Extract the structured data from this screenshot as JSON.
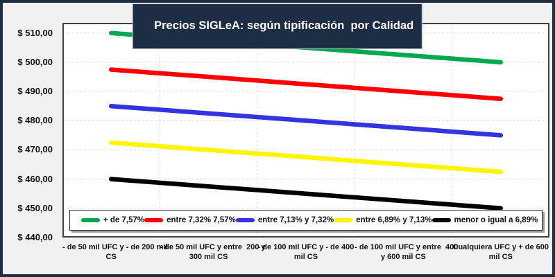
{
  "frame": {
    "background": "#F1F1F1",
    "border_color": "#1C2D44"
  },
  "title": {
    "bg": "#1C2D44",
    "color": "#FFFFFF"
  },
  "chart_data": {
    "type": "line",
    "title": "Precios SIGLeA: según tipificación  por Calidad",
    "categories": [
      "- de 50 mil UFC y - de 200 mil CS",
      "- de 50 mil UFC y entre 200 y 300 mil CS",
      "- de 100 mil UFC y - de 400 mil CS",
      "- de 100 mil UFC y entre 400 y 600 mil CS",
      "Cualquiera UFC y + de 600 mil CS"
    ],
    "x_tick_label_lines": [
      [
        "- de 50 mil UFC y - de 200 mil",
        "CS"
      ],
      [
        "- de 50 mil UFC y entre  200 y",
        "300 mil CS"
      ],
      [
        "- de 100 mil UFC y - de 400",
        "mil CS"
      ],
      [
        "- de 100 mil UFC y entre  400",
        "y 600 mil CS"
      ],
      [
        "Cualquiera UFC y + de 600",
        "mil CS"
      ]
    ],
    "series": [
      {
        "name": "+ de 7,57%",
        "color": "#00A850",
        "values": [
          510.0,
          507.5,
          505.0,
          502.5,
          500.0
        ]
      },
      {
        "name": "entre 7,32% 7,57%",
        "color": "#FE0000",
        "values": [
          497.5,
          495.0,
          492.5,
          490.0,
          487.5
        ]
      },
      {
        "name": "entre 7,13% y 7,32%",
        "color": "#3333DF",
        "values": [
          485.0,
          482.5,
          480.0,
          477.5,
          475.0
        ]
      },
      {
        "name": "entre 6,89% y 7,13%",
        "color": "#FFF500",
        "values": [
          472.5,
          470.0,
          467.5,
          465.0,
          462.5
        ]
      },
      {
        "name": "menor o igual a 6,89%",
        "color": "#000000",
        "values": [
          460.0,
          457.5,
          455.0,
          452.5,
          450.0
        ]
      }
    ],
    "y_ticks": [
      440,
      450,
      460,
      470,
      480,
      490,
      500,
      510
    ],
    "y_tick_labels": [
      "$ 440,00",
      "$ 450,00",
      "$ 460,00",
      "$ 470,00",
      "$ 480,00",
      "$ 490,00",
      "$ 500,00",
      "$ 510,00"
    ],
    "ylim": [
      440,
      513.5
    ],
    "grid": {
      "horizontal": true,
      "vertical": true,
      "style": "dashed",
      "color": "#DBDBDB"
    },
    "plot_border_color": "#404040",
    "legend_position": "bottom-inside",
    "line_width": 6.5
  }
}
